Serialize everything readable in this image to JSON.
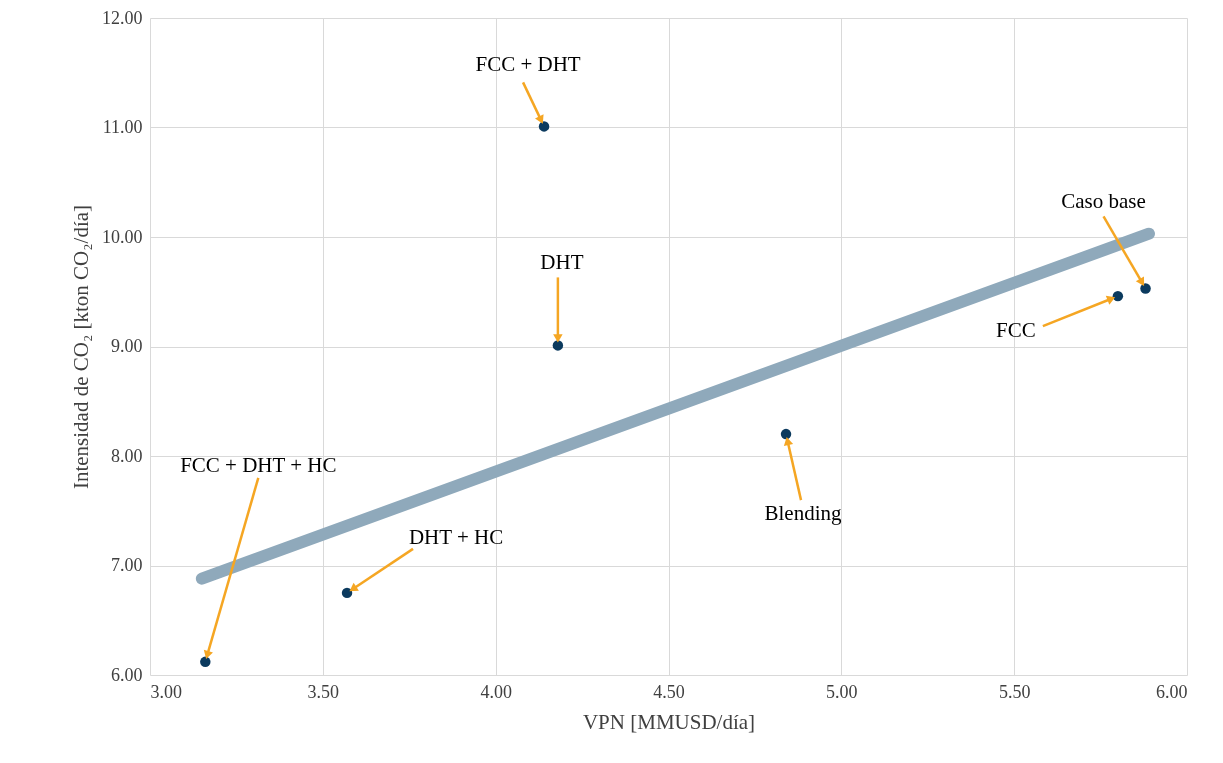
{
  "chart_data": {
    "type": "scatter",
    "xlabel": "VPN [MMUSD/día]",
    "ylabel": "Intensidad de CO₂ [kton CO₂/día]",
    "xlim": [
      3,
      6
    ],
    "ylim": [
      6,
      12
    ],
    "xticks": [
      {
        "value": 3,
        "label": "3.00"
      },
      {
        "value": 3.5,
        "label": "3.50"
      },
      {
        "value": 4,
        "label": "4.00"
      },
      {
        "value": 4.5,
        "label": "4.50"
      },
      {
        "value": 5,
        "label": "5.00"
      },
      {
        "value": 5.5,
        "label": "5.50"
      },
      {
        "value": 6,
        "label": "6.00"
      }
    ],
    "yticks": [
      {
        "value": 6,
        "label": "6.00"
      },
      {
        "value": 7,
        "label": "7.00"
      },
      {
        "value": 8,
        "label": "8.00"
      },
      {
        "value": 9,
        "label": "9.00"
      },
      {
        "value": 10,
        "label": "10.00"
      },
      {
        "value": 11,
        "label": "11.00"
      },
      {
        "value": 12,
        "label": "12.00"
      }
    ],
    "grid": true,
    "series": [
      {
        "type": "line",
        "marker": "none",
        "color": "#8fa9bb",
        "x": [
          3.15,
          5.89
        ],
        "values": [
          6.88,
          10.03
        ]
      },
      {
        "marker": "circle",
        "color": "#0b3a5e",
        "x": [
          4.14,
          4.18,
          4.84,
          5.8,
          5.88,
          3.57,
          3.16
        ],
        "values": [
          11.01,
          9.01,
          8.2,
          9.46,
          9.53,
          6.75,
          6.12
        ]
      }
    ],
    "annotations": [
      {
        "text": "FCC + DHT",
        "x": 4.14,
        "y": 11.01
      },
      {
        "text": "DHT",
        "x": 4.18,
        "y": 9.01
      },
      {
        "text": "Blending",
        "x": 4.84,
        "y": 8.2
      },
      {
        "text": "FCC",
        "x": 5.8,
        "y": 9.46
      },
      {
        "text": "Caso base",
        "x": 5.88,
        "y": 9.53
      },
      {
        "text": "DHT + HC",
        "x": 3.57,
        "y": 6.75
      },
      {
        "text": "FCC + DHT + HC",
        "x": 3.16,
        "y": 6.12
      }
    ]
  }
}
